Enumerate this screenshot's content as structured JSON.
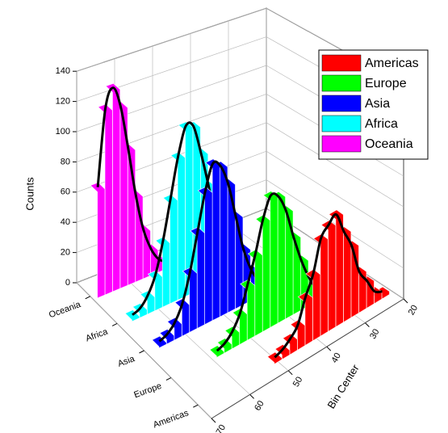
{
  "chart_data": {
    "type": "bar",
    "xlabel": "Bin Center",
    "ylabel": "Counts",
    "xlim": [
      20,
      70
    ],
    "xticks": [
      20,
      30,
      40,
      50,
      60,
      70
    ],
    "ylim": [
      0,
      140
    ],
    "yticks": [
      0,
      20,
      40,
      60,
      80,
      100,
      120,
      140
    ],
    "grid": true,
    "legend": "top-right",
    "categories": [
      "Americas",
      "Europe",
      "Asia",
      "Africa",
      "Oceania"
    ],
    "series": [
      {
        "name": "Americas",
        "color": "#ff0000",
        "x": [
          22,
          24,
          26,
          28,
          30,
          32,
          34,
          36,
          38,
          40,
          42,
          44,
          46,
          48,
          50
        ],
        "values": [
          2,
          5,
          15,
          24,
          44,
          56,
          70,
          66,
          60,
          40,
          28,
          13,
          7,
          3,
          1
        ]
      },
      {
        "name": "Europe",
        "color": "#00ff00",
        "x": [
          30,
          32,
          34,
          36,
          38,
          40,
          42,
          44,
          46,
          48,
          50,
          52,
          54,
          56,
          58
        ],
        "values": [
          3,
          6,
          16,
          30,
          48,
          68,
          80,
          83,
          70,
          50,
          33,
          17,
          8,
          3,
          1
        ]
      },
      {
        "name": "Asia",
        "color": "#0000ff",
        "x": [
          38,
          40,
          42,
          44,
          46,
          48,
          50,
          52,
          54,
          56,
          58,
          60,
          62,
          64,
          66
        ],
        "values": [
          2,
          8,
          18,
          34,
          58,
          82,
          96,
          100,
          84,
          60,
          36,
          18,
          8,
          3,
          1
        ]
      },
      {
        "name": "Africa",
        "color": "#00ffff",
        "x": [
          38,
          40,
          42,
          44,
          46,
          48,
          50,
          52,
          54,
          56,
          58,
          60,
          62,
          64,
          66
        ],
        "values": [
          3,
          9,
          20,
          38,
          64,
          88,
          108,
          110,
          92,
          66,
          40,
          20,
          9,
          3,
          1
        ]
      },
      {
        "name": "Oceania",
        "color": "#ff00ff",
        "x": [
          50,
          52,
          54,
          56,
          58,
          60,
          62,
          64,
          66,
          68
        ],
        "values": [
          2,
          6,
          15,
          30,
          55,
          88,
          118,
          132,
          120,
          70
        ]
      }
    ]
  }
}
